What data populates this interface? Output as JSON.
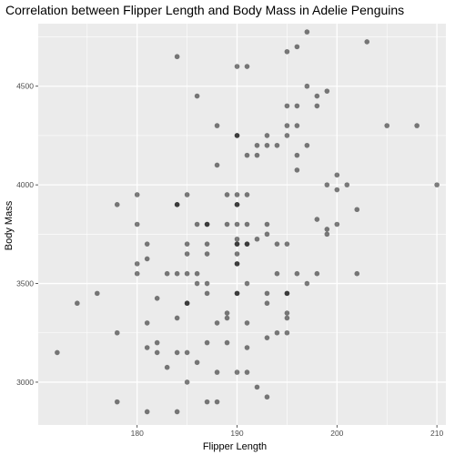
{
  "chart_data": {
    "type": "scatter",
    "title": "Correlation between Flipper Length and Body Mass in Adelie Penguins",
    "xlabel": "Flipper Length",
    "ylabel": "Body Mass",
    "xlim": [
      170.1,
      210.9
    ],
    "ylim": [
      2783,
      4817
    ],
    "x_ticks": [
      180,
      190,
      200,
      210
    ],
    "y_ticks": [
      3000,
      3500,
      4000,
      4500
    ],
    "x_tick_labels": [
      "180",
      "190",
      "200",
      "210"
    ],
    "y_tick_labels": [
      "3000",
      "3500",
      "4000",
      "4500"
    ],
    "grid": true,
    "panel_background": "#ebebeb",
    "grid_color": "#ffffff",
    "point_color": "#000000",
    "point_alpha": 0.5,
    "points": [
      [
        172,
        3150
      ],
      [
        174,
        3400
      ],
      [
        176,
        3450
      ],
      [
        178,
        3900
      ],
      [
        178,
        3250
      ],
      [
        178,
        2900
      ],
      [
        180,
        3950
      ],
      [
        180,
        3800
      ],
      [
        180,
        3600
      ],
      [
        180,
        3550
      ],
      [
        181,
        3700
      ],
      [
        181,
        3625
      ],
      [
        181,
        3300
      ],
      [
        181,
        3175
      ],
      [
        181,
        2850
      ],
      [
        182,
        3425
      ],
      [
        182,
        3200
      ],
      [
        182,
        3150
      ],
      [
        183,
        3550
      ],
      [
        183,
        3075
      ],
      [
        184,
        4650
      ],
      [
        184,
        3900
      ],
      [
        184,
        3900
      ],
      [
        184,
        3550
      ],
      [
        184,
        3325
      ],
      [
        184,
        3150
      ],
      [
        184,
        2850
      ],
      [
        185,
        3950
      ],
      [
        185,
        3700
      ],
      [
        185,
        3650
      ],
      [
        185,
        3550
      ],
      [
        185,
        3400
      ],
      [
        185,
        3400
      ],
      [
        185,
        3150
      ],
      [
        185,
        3000
      ],
      [
        186,
        4450
      ],
      [
        186,
        3800
      ],
      [
        186,
        3550
      ],
      [
        186,
        3500
      ],
      [
        186,
        3100
      ],
      [
        187,
        3800
      ],
      [
        187,
        3800
      ],
      [
        187,
        3700
      ],
      [
        187,
        3650
      ],
      [
        187,
        3500
      ],
      [
        187,
        3450
      ],
      [
        187,
        3200
      ],
      [
        187,
        2900
      ],
      [
        188,
        4300
      ],
      [
        188,
        4100
      ],
      [
        188,
        3300
      ],
      [
        188,
        3050
      ],
      [
        188,
        2900
      ],
      [
        189,
        3950
      ],
      [
        189,
        3800
      ],
      [
        189,
        3350
      ],
      [
        189,
        3325
      ],
      [
        189,
        3200
      ],
      [
        190,
        4600
      ],
      [
        190,
        4250
      ],
      [
        190,
        4250
      ],
      [
        190,
        3950
      ],
      [
        190,
        3900
      ],
      [
        190,
        3900
      ],
      [
        190,
        3800
      ],
      [
        190,
        3725
      ],
      [
        190,
        3700
      ],
      [
        190,
        3700
      ],
      [
        190,
        3650
      ],
      [
        190,
        3600
      ],
      [
        190,
        3600
      ],
      [
        190,
        3450
      ],
      [
        190,
        3450
      ],
      [
        190,
        3050
      ],
      [
        191,
        4600
      ],
      [
        191,
        4150
      ],
      [
        191,
        3950
      ],
      [
        191,
        3800
      ],
      [
        191,
        3700
      ],
      [
        191,
        3700
      ],
      [
        191,
        3500
      ],
      [
        191,
        3300
      ],
      [
        191,
        3175
      ],
      [
        191,
        3050
      ],
      [
        192,
        4200
      ],
      [
        192,
        4150
      ],
      [
        192,
        3725
      ],
      [
        192,
        2975
      ],
      [
        193,
        4250
      ],
      [
        193,
        4200
      ],
      [
        193,
        3800
      ],
      [
        193,
        3750
      ],
      [
        193,
        3450
      ],
      [
        193,
        3400
      ],
      [
        193,
        3225
      ],
      [
        193,
        2925
      ],
      [
        194,
        4200
      ],
      [
        194,
        3700
      ],
      [
        194,
        3550
      ],
      [
        194,
        3250
      ],
      [
        195,
        4675
      ],
      [
        195,
        4400
      ],
      [
        195,
        4300
      ],
      [
        195,
        4250
      ],
      [
        195,
        3700
      ],
      [
        195,
        3450
      ],
      [
        195,
        3450
      ],
      [
        195,
        3350
      ],
      [
        195,
        3325
      ],
      [
        195,
        3250
      ],
      [
        196,
        4700
      ],
      [
        196,
        4400
      ],
      [
        196,
        4300
      ],
      [
        196,
        4150
      ],
      [
        196,
        4075
      ],
      [
        196,
        3550
      ],
      [
        197,
        4775
      ],
      [
        197,
        4500
      ],
      [
        197,
        4200
      ],
      [
        197,
        3500
      ],
      [
        198,
        4450
      ],
      [
        198,
        4400
      ],
      [
        198,
        3825
      ],
      [
        198,
        3550
      ],
      [
        199,
        4475
      ],
      [
        199,
        4000
      ],
      [
        199,
        3775
      ],
      [
        199,
        3750
      ],
      [
        200,
        4050
      ],
      [
        200,
        3975
      ],
      [
        200,
        3800
      ],
      [
        201,
        4000
      ],
      [
        202,
        3875
      ],
      [
        202,
        3550
      ],
      [
        203,
        4725
      ],
      [
        205,
        4300
      ],
      [
        208,
        4300
      ],
      [
        210,
        4000
      ]
    ]
  }
}
